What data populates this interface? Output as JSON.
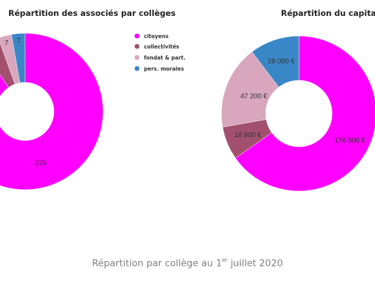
{
  "chart_data": [
    {
      "type": "pie",
      "title": "Répartition des associés par collèges",
      "categories": [
        "citoyens",
        "collectivités",
        "fondat & part.",
        "pers. morales"
      ],
      "values": [
        229,
        10,
        7,
        7
      ],
      "labels": [
        "229",
        "",
        "7",
        "7"
      ],
      "donut": true,
      "legend": "right"
    },
    {
      "type": "pie",
      "title": "Répartition du capital par",
      "categories": [
        "citoyens",
        "collectivités",
        "fondat & part.",
        "pers. morales"
      ],
      "values": [
        176500,
        18800,
        47200,
        28000
      ],
      "labels": [
        "176 500 €",
        "18 800 €",
        "47 200 €",
        "28 000 €"
      ],
      "donut": true
    }
  ],
  "legend": {
    "items": [
      {
        "label": "citoyens",
        "color": "#ff00ff"
      },
      {
        "label": "collectivités",
        "color": "#a3506f"
      },
      {
        "label": "fondat & part.",
        "color": "#d8a7bd"
      },
      {
        "label": "pers. morales",
        "color": "#3a87c7"
      }
    ]
  },
  "caption": {
    "pre": "Répartition par collège au 1",
    "sup": "er",
    "post": " juillet 2020"
  }
}
